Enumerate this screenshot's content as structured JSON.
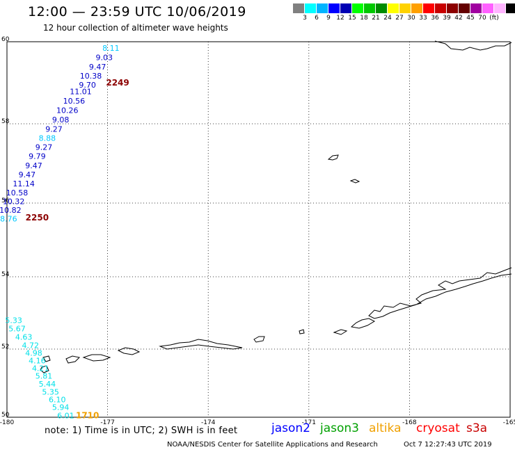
{
  "header": {
    "title": "12:00 — 23:59 UTC 10/06/2019",
    "subtitle": "12 hour collection of altimeter wave heights"
  },
  "legend": {
    "colors": [
      "#808080",
      "#00ffff",
      "#00b4ff",
      "#0000ff",
      "#0000b4",
      "#00ff00",
      "#00c800",
      "#008c00",
      "#ffff00",
      "#ffd200",
      "#ffa000",
      "#ff0000",
      "#c80000",
      "#8c0000",
      "#640000",
      "#a000a0",
      "#ff60ff",
      "#ffb4ff",
      "#000000"
    ],
    "labels": [
      "3",
      "6",
      "9",
      "12",
      "15",
      "18",
      "21",
      "24",
      "27",
      "30",
      "33",
      "36",
      "39",
      "42",
      "45",
      "70",
      "(ft)"
    ]
  },
  "map": {
    "lon_range": [
      -180,
      -165
    ],
    "lat_range": [
      50,
      60
    ],
    "lon_ticks": [
      "-180",
      "-177",
      "-174",
      "-171",
      "-168",
      "-165"
    ],
    "lat_ticks": [
      "60",
      "58",
      "56",
      "54",
      "52",
      "50"
    ]
  },
  "tracks": {
    "north": {
      "color_dark": "#0000c8",
      "color_light": "#00c8ff",
      "points": [
        {
          "lat": 59.85,
          "lon": -176.9,
          "swh": "8.11",
          "tone": "light"
        },
        {
          "lat": 59.62,
          "lon": -177.1,
          "swh": "9.03",
          "tone": "dark"
        },
        {
          "lat": 59.39,
          "lon": -177.3,
          "swh": "9.47",
          "tone": "dark"
        },
        {
          "lat": 59.17,
          "lon": -177.5,
          "swh": "10.38",
          "tone": "dark"
        },
        {
          "lat": 58.95,
          "lon": -177.6,
          "swh": "9.70",
          "tone": "dark"
        },
        {
          "lat": 58.79,
          "lon": -177.8,
          "swh": "11.01",
          "tone": "dark"
        },
        {
          "lat": 58.56,
          "lon": -178.0,
          "swh": "10.56",
          "tone": "dark"
        },
        {
          "lat": 58.33,
          "lon": -178.2,
          "swh": "10.26",
          "tone": "dark"
        },
        {
          "lat": 58.1,
          "lon": -178.4,
          "swh": "9.08",
          "tone": "dark"
        },
        {
          "lat": 57.87,
          "lon": -178.6,
          "swh": "9.27",
          "tone": "dark"
        },
        {
          "lat": 57.64,
          "lon": -178.8,
          "swh": "8.88",
          "tone": "light"
        },
        {
          "lat": 57.41,
          "lon": -178.9,
          "swh": "9.27",
          "tone": "dark"
        },
        {
          "lat": 57.18,
          "lon": -179.1,
          "swh": "9.79",
          "tone": "dark"
        },
        {
          "lat": 56.95,
          "lon": -179.2,
          "swh": "9.47",
          "tone": "dark"
        },
        {
          "lat": 56.72,
          "lon": -179.4,
          "swh": "9.47",
          "tone": "dark"
        },
        {
          "lat": 56.49,
          "lon": -179.5,
          "swh": "11.14",
          "tone": "dark"
        },
        {
          "lat": 56.26,
          "lon": -179.7,
          "swh": "10.58",
          "tone": "dark"
        },
        {
          "lat": 56.04,
          "lon": -179.8,
          "swh": "10.32",
          "tone": "dark"
        },
        {
          "lat": 55.81,
          "lon": -179.9,
          "swh": "10.82",
          "tone": "dark"
        },
        {
          "lat": 55.58,
          "lon": -179.95,
          "swh": "8.76",
          "tone": "light"
        }
      ],
      "time_labels": [
        {
          "lat": 59.0,
          "lon": -176.7,
          "text": "2249"
        },
        {
          "lat": 55.6,
          "lon": -179.1,
          "text": "2250"
        }
      ]
    },
    "south": {
      "color": "#00e0e8",
      "points": [
        {
          "lat": 52.8,
          "lon": -179.8,
          "swh": "5.33"
        },
        {
          "lat": 52.57,
          "lon": -179.7,
          "swh": "5.67"
        },
        {
          "lat": 52.34,
          "lon": -179.5,
          "swh": "4.63"
        },
        {
          "lat": 52.11,
          "lon": -179.3,
          "swh": "4.72"
        },
        {
          "lat": 51.89,
          "lon": -179.2,
          "swh": "4.98"
        },
        {
          "lat": 51.66,
          "lon": -179.1,
          "swh": "4.16"
        },
        {
          "lat": 51.44,
          "lon": -179.0,
          "swh": "4.21"
        },
        {
          "lat": 51.21,
          "lon": -178.9,
          "swh": "5.81"
        },
        {
          "lat": 50.98,
          "lon": -178.8,
          "swh": "5.44"
        },
        {
          "lat": 50.75,
          "lon": -178.7,
          "swh": "5.35"
        },
        {
          "lat": 50.52,
          "lon": -178.5,
          "swh": "6.10"
        },
        {
          "lat": 50.3,
          "lon": -178.4,
          "swh": "5.94"
        },
        {
          "lat": 50.05,
          "lon": -178.25,
          "swh": "6.01"
        }
      ],
      "time_labels": [
        {
          "lat": 50.05,
          "lon": -177.6,
          "text": "1710",
          "color": "#f0a000"
        }
      ]
    }
  },
  "footer": {
    "note": "note: 1) Time is in UTC; 2) SWH is in feet",
    "missions": [
      {
        "name": "jason2",
        "color": "#0000ff"
      },
      {
        "name": "jason3",
        "color": "#00a000"
      },
      {
        "name": "altika",
        "color": "#f0a000"
      },
      {
        "name": "cryosat",
        "color": "#ff0000"
      },
      {
        "name": "s3a",
        "color": "#c80000"
      }
    ],
    "credit": "NOAA/NESDIS Center for Satellite Applications and Research",
    "timestamp": "Oct  7 12:27:43 UTC 2019"
  }
}
